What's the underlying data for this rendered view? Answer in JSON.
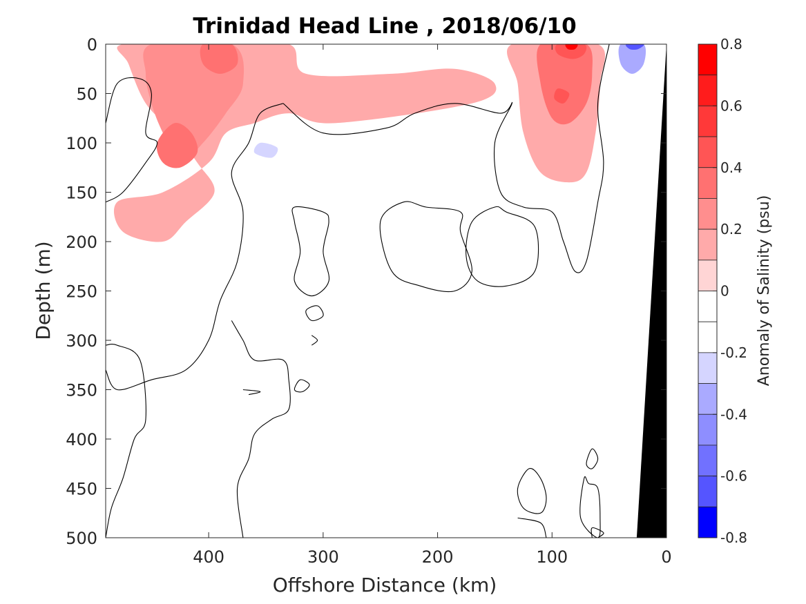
{
  "chart_data": {
    "type": "heatmap",
    "title": "Trinidad Head Line , 2018/06/10",
    "xlabel": "Offshore Distance (km)",
    "ylabel": "Depth (m)",
    "x_reversed": true,
    "y_reversed": true,
    "xlim": [
      490,
      0
    ],
    "ylim": [
      0,
      500
    ],
    "xticks": [
      400,
      300,
      200,
      100,
      0
    ],
    "xtick_labels": [
      "400",
      "300",
      "200",
      "100",
      "0"
    ],
    "yticks": [
      0,
      50,
      100,
      150,
      200,
      250,
      300,
      350,
      400,
      450,
      500
    ],
    "ytick_labels": [
      "0",
      "50",
      "100",
      "150",
      "200",
      "250",
      "300",
      "350",
      "400",
      "450",
      "500"
    ],
    "colorbar": {
      "label": "Anomaly of Salinity (psu)",
      "range": [
        -0.8,
        0.8
      ],
      "ticks": [
        0.8,
        0.6,
        0.4,
        0.2,
        0,
        -0.2,
        -0.4,
        -0.6,
        -0.8
      ],
      "tick_labels": [
        "0.8",
        "0.6",
        "0.4",
        "0.2",
        "0",
        "-0.2",
        "-0.4",
        "-0.6",
        "-0.8"
      ],
      "levels": [
        {
          "from": 0.7,
          "to": 0.8,
          "color": "#ff0000"
        },
        {
          "from": 0.6,
          "to": 0.7,
          "color": "#ff1c1c"
        },
        {
          "from": 0.5,
          "to": 0.6,
          "color": "#ff3939"
        },
        {
          "from": 0.4,
          "to": 0.5,
          "color": "#ff5555"
        },
        {
          "from": 0.3,
          "to": 0.4,
          "color": "#ff7171"
        },
        {
          "from": 0.2,
          "to": 0.3,
          "color": "#ff8e8e"
        },
        {
          "from": 0.1,
          "to": 0.2,
          "color": "#ffaaaa"
        },
        {
          "from": 0.0,
          "to": 0.1,
          "color": "#ffd5d5"
        },
        {
          "from": -0.1,
          "to": 0.0,
          "color": "#ffffff"
        },
        {
          "from": -0.2,
          "to": -0.1,
          "color": "#ffffff"
        },
        {
          "from": -0.3,
          "to": -0.2,
          "color": "#d5d5ff"
        },
        {
          "from": -0.4,
          "to": -0.3,
          "color": "#aaaaff"
        },
        {
          "from": -0.5,
          "to": -0.4,
          "color": "#8e8eff"
        },
        {
          "from": -0.6,
          "to": -0.5,
          "color": "#7171ff"
        },
        {
          "from": -0.7,
          "to": -0.6,
          "color": "#5555ff"
        },
        {
          "from": -0.8,
          "to": -0.7,
          "color": "#0000ff"
        }
      ]
    },
    "positive_regions": [
      {
        "level": 0.1,
        "points": [
          [
            475,
            0
          ],
          [
            395,
            0
          ],
          [
            330,
            0
          ],
          [
            315,
            30
          ],
          [
            240,
            30
          ],
          [
            185,
            25
          ],
          [
            150,
            40
          ],
          [
            170,
            60
          ],
          [
            290,
            80
          ],
          [
            330,
            70
          ],
          [
            360,
            80
          ],
          [
            385,
            90
          ],
          [
            400,
            120
          ],
          [
            440,
            150
          ],
          [
            480,
            160
          ],
          [
            475,
            190
          ],
          [
            440,
            200
          ],
          [
            420,
            180
          ],
          [
            395,
            150
          ],
          [
            410,
            120
          ],
          [
            430,
            90
          ],
          [
            455,
            60
          ],
          [
            470,
            20
          ]
        ]
      },
      {
        "level": 0.2,
        "points": [
          [
            450,
            0
          ],
          [
            380,
            0
          ],
          [
            370,
            40
          ],
          [
            385,
            70
          ],
          [
            405,
            100
          ],
          [
            425,
            120
          ],
          [
            440,
            90
          ],
          [
            450,
            60
          ],
          [
            455,
            30
          ]
        ]
      },
      {
        "level": 0.3,
        "points": [
          [
            405,
            0
          ],
          [
            380,
            0
          ],
          [
            375,
            20
          ],
          [
            390,
            30
          ],
          [
            405,
            20
          ]
        ]
      },
      {
        "level": 0.3,
        "points": [
          [
            430,
            80
          ],
          [
            415,
            90
          ],
          [
            410,
            110
          ],
          [
            425,
            125
          ],
          [
            440,
            120
          ],
          [
            445,
            100
          ]
        ]
      },
      {
        "level": 0.1,
        "points": [
          [
            135,
            0
          ],
          [
            60,
            0
          ],
          [
            58,
            40
          ],
          [
            62,
            90
          ],
          [
            70,
            130
          ],
          [
            85,
            140
          ],
          [
            110,
            130
          ],
          [
            125,
            90
          ],
          [
            130,
            40
          ]
        ]
      },
      {
        "level": 0.3,
        "points": [
          [
            110,
            0
          ],
          [
            70,
            0
          ],
          [
            65,
            30
          ],
          [
            70,
            60
          ],
          [
            85,
            80
          ],
          [
            100,
            75
          ],
          [
            110,
            40
          ]
        ]
      },
      {
        "level": 0.4,
        "points": [
          [
            95,
            0
          ],
          [
            72,
            0
          ],
          [
            72,
            10
          ],
          [
            82,
            15
          ],
          [
            95,
            10
          ]
        ]
      },
      {
        "level": 0.7,
        "points": [
          [
            88,
            0
          ],
          [
            78,
            0
          ],
          [
            80,
            5
          ],
          [
            86,
            5
          ]
        ]
      },
      {
        "level": 0.4,
        "points": [
          [
            95,
            45
          ],
          [
            85,
            50
          ],
          [
            90,
            60
          ],
          [
            98,
            55
          ]
        ]
      }
    ],
    "negative_regions": [
      {
        "level": -0.2,
        "points": [
          [
            355,
            90
          ],
          [
            330,
            90
          ],
          [
            320,
            110
          ],
          [
            335,
            150
          ],
          [
            360,
            150
          ],
          [
            375,
            130
          ],
          [
            370,
            100
          ]
        ]
      },
      {
        "level": -0.3,
        "points": [
          [
            355,
            100
          ],
          [
            340,
            105
          ],
          [
            345,
            115
          ],
          [
            360,
            110
          ]
        ]
      },
      {
        "level": -0.2,
        "points": [
          [
            215,
            90
          ],
          [
            150,
            80
          ],
          [
            140,
            100
          ],
          [
            160,
            115
          ],
          [
            210,
            115
          ],
          [
            225,
            100
          ]
        ]
      },
      {
        "level": -0.2,
        "points": [
          [
            45,
            0
          ],
          [
            15,
            0
          ],
          [
            15,
            40
          ],
          [
            20,
            80
          ],
          [
            40,
            100
          ],
          [
            50,
            80
          ],
          [
            50,
            40
          ]
        ]
      },
      {
        "level": -0.4,
        "points": [
          [
            40,
            0
          ],
          [
            20,
            0
          ],
          [
            20,
            20
          ],
          [
            30,
            30
          ],
          [
            40,
            20
          ]
        ]
      },
      {
        "level": -0.7,
        "points": [
          [
            35,
            0
          ],
          [
            20,
            0
          ],
          [
            25,
            5
          ],
          [
            32,
            5
          ]
        ]
      }
    ],
    "zero_contours": [
      [
        [
          490,
          80
        ],
        [
          480,
          40
        ],
        [
          460,
          35
        ],
        [
          450,
          50
        ],
        [
          455,
          90
        ],
        [
          445,
          100
        ],
        [
          455,
          120
        ],
        [
          475,
          150
        ],
        [
          490,
          160
        ]
      ],
      [
        [
          335,
          60
        ],
        [
          300,
          90
        ],
        [
          245,
          85
        ],
        [
          220,
          70
        ],
        [
          185,
          60
        ],
        [
          145,
          70
        ],
        [
          135,
          60
        ],
        [
          150,
          100
        ],
        [
          145,
          150
        ],
        [
          125,
          165
        ],
        [
          100,
          170
        ],
        [
          90,
          200
        ],
        [
          80,
          230
        ],
        [
          70,
          220
        ],
        [
          60,
          160
        ],
        [
          55,
          120
        ],
        [
          60,
          60
        ],
        [
          50,
          0
        ]
      ],
      [
        [
          335,
          60
        ],
        [
          355,
          70
        ],
        [
          365,
          100
        ],
        [
          380,
          130
        ],
        [
          370,
          170
        ],
        [
          375,
          220
        ],
        [
          390,
          260
        ],
        [
          400,
          300
        ],
        [
          420,
          330
        ],
        [
          450,
          340
        ],
        [
          480,
          350
        ],
        [
          490,
          330
        ]
      ],
      [
        [
          490,
          305
        ],
        [
          480,
          305
        ],
        [
          460,
          320
        ],
        [
          455,
          380
        ],
        [
          465,
          400
        ],
        [
          475,
          440
        ],
        [
          485,
          470
        ],
        [
          490,
          500
        ]
      ],
      [
        [
          325,
          165
        ],
        [
          300,
          170
        ],
        [
          295,
          180
        ],
        [
          300,
          210
        ],
        [
          295,
          240
        ],
        [
          310,
          255
        ],
        [
          325,
          240
        ],
        [
          320,
          210
        ],
        [
          325,
          180
        ]
      ],
      [
        [
          230,
          160
        ],
        [
          210,
          165
        ],
        [
          180,
          170
        ],
        [
          180,
          190
        ],
        [
          170,
          230
        ],
        [
          185,
          250
        ],
        [
          215,
          245
        ],
        [
          240,
          230
        ],
        [
          250,
          180
        ]
      ],
      [
        [
          150,
          165
        ],
        [
          140,
          170
        ],
        [
          115,
          185
        ],
        [
          115,
          230
        ],
        [
          140,
          245
        ],
        [
          165,
          240
        ],
        [
          175,
          215
        ],
        [
          170,
          180
        ]
      ],
      [
        [
          380,
          280
        ],
        [
          370,
          300
        ],
        [
          360,
          320
        ],
        [
          335,
          320
        ],
        [
          330,
          340
        ],
        [
          330,
          370
        ],
        [
          345,
          380
        ],
        [
          360,
          395
        ],
        [
          365,
          420
        ],
        [
          375,
          450
        ],
        [
          370,
          500
        ]
      ],
      [
        [
          315,
          270
        ],
        [
          305,
          265
        ],
        [
          300,
          275
        ],
        [
          310,
          280
        ]
      ],
      [
        [
          310,
          295
        ],
        [
          305,
          300
        ],
        [
          310,
          305
        ]
      ],
      [
        [
          320,
          340
        ],
        [
          312,
          345
        ],
        [
          318,
          352
        ],
        [
          325,
          350
        ]
      ],
      [
        [
          370,
          350
        ],
        [
          355,
          352
        ],
        [
          365,
          355
        ]
      ],
      [
        [
          120,
          430
        ],
        [
          110,
          440
        ],
        [
          105,
          460
        ],
        [
          110,
          475
        ],
        [
          125,
          470
        ],
        [
          130,
          450
        ]
      ],
      [
        [
          130,
          480
        ],
        [
          110,
          485
        ],
        [
          105,
          500
        ]
      ],
      [
        [
          65,
          410
        ],
        [
          60,
          420
        ],
        [
          65,
          430
        ],
        [
          70,
          425
        ]
      ],
      [
        [
          68,
          445
        ],
        [
          60,
          450
        ],
        [
          58,
          480
        ],
        [
          60,
          500
        ],
        [
          75,
          480
        ],
        [
          72,
          440
        ]
      ],
      [
        [
          60,
          500
        ],
        [
          55,
          495
        ],
        [
          65,
          490
        ],
        [
          65,
          500
        ]
      ]
    ],
    "bathymetry_polygon": [
      [
        0,
        0
      ],
      [
        26,
        500
      ],
      [
        0,
        500
      ]
    ]
  }
}
